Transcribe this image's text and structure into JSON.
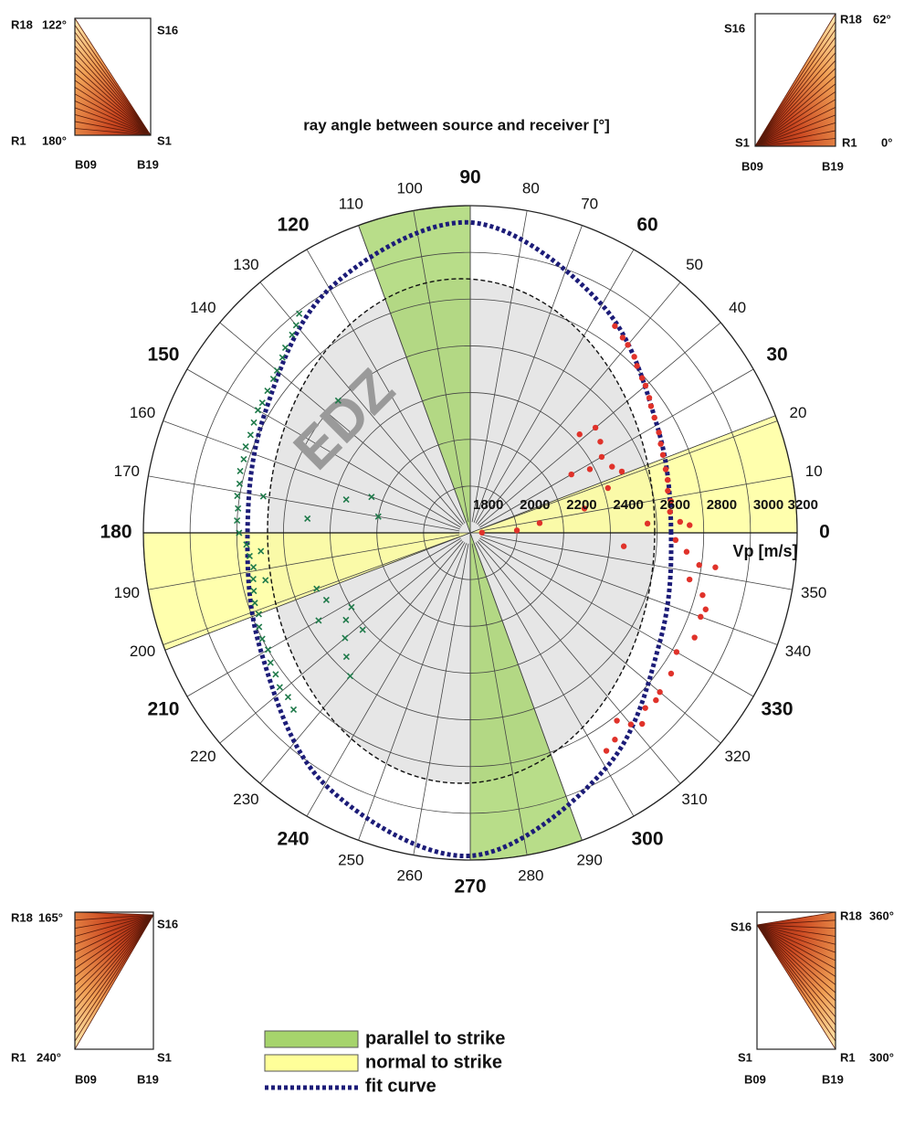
{
  "chart_data": {
    "type": "polar",
    "title": "ray angle between source and receiver [°]",
    "r_label": "Vp [m/s]",
    "annotation": "EDZ",
    "rlim": [
      1800,
      3200
    ],
    "rticks": [
      1800,
      2000,
      2200,
      2400,
      2600,
      2800,
      3000,
      3200
    ],
    "thetalim": [
      0,
      360
    ],
    "thetaticks": [
      0,
      10,
      20,
      30,
      40,
      50,
      60,
      70,
      80,
      90,
      100,
      110,
      120,
      130,
      140,
      150,
      160,
      170,
      180,
      190,
      200,
      210,
      220,
      230,
      240,
      250,
      260,
      270,
      280,
      290,
      300,
      310,
      320,
      330,
      340,
      350
    ],
    "sectors": [
      {
        "name": "parallel to strike",
        "color": "#a6d46c",
        "ranges": [
          [
            90,
            110
          ],
          [
            270,
            290
          ]
        ]
      },
      {
        "name": "normal to strike",
        "color": "#ffff99",
        "ranges": [
          [
            0,
            21
          ],
          [
            180,
            201
          ]
        ]
      }
    ],
    "series": [
      {
        "name": "fit curve",
        "color": "#1c1c78",
        "style": "dashed",
        "x": [
          0,
          30,
          60,
          90,
          120,
          150,
          180,
          210,
          240,
          270,
          300,
          330
        ],
        "values": [
          2660,
          2723,
          2927,
          3128,
          3006,
          2817,
          2754,
          2832,
          3044,
          3182,
          2962,
          2737
        ]
      },
      {
        "color": "#e0322a",
        "marker": "circle",
        "x": [
          55,
          52,
          50,
          47,
          45,
          42,
          40,
          37,
          35,
          32,
          28,
          25,
          22,
          18,
          15,
          12,
          9,
          6,
          3,
          2,
          358,
          355,
          352,
          348,
          345,
          340,
          335,
          330,
          325,
          320,
          315,
          310,
          305,
          302,
          318,
          312,
          308,
          40,
          35,
          42,
          30,
          28,
          25,
          22,
          30,
          18,
          12,
          8,
          3,
          1,
          355,
          3,
          352,
          342
        ],
        "values": [
          2880,
          2860,
          2850,
          2830,
          2810,
          2790,
          2780,
          2760,
          2745,
          2730,
          2715,
          2700,
          2690,
          2680,
          2675,
          2665,
          2670,
          2660,
          2700,
          2740,
          2680,
          2730,
          2790,
          2760,
          2830,
          2850,
          2860,
          2820,
          2850,
          2860,
          2860,
          2870,
          2880,
          2900,
          2870,
          2900,
          2820,
          2500,
          2480,
          2430,
          2450,
          2380,
          2470,
          2500,
          2300,
          2420,
          2300,
          2100,
          2000,
          1850,
          2460,
          2560,
          2860,
          2860
        ]
      },
      {
        "color": "#1f7a4a",
        "marker": "x",
        "x": [
          128,
          130,
          132,
          135,
          137,
          140,
          142,
          145,
          148,
          150,
          153,
          156,
          159,
          162,
          165,
          168,
          171,
          174,
          177,
          180,
          183,
          186,
          189,
          192,
          195,
          198,
          201,
          204,
          207,
          210,
          213,
          216,
          219,
          222,
          225,
          170,
          185,
          193,
          165,
          170,
          200,
          205,
          210,
          215,
          220,
          225,
          230,
          212,
          222,
          160,
          175,
          135
        ],
        "values": [
          2990,
          2960,
          2940,
          2920,
          2900,
          2880,
          2870,
          2860,
          2850,
          2850,
          2840,
          2830,
          2830,
          2820,
          2820,
          2810,
          2810,
          2800,
          2800,
          2790,
          2760,
          2750,
          2740,
          2750,
          2760,
          2770,
          2770,
          2790,
          2800,
          2800,
          2820,
          2830,
          2850,
          2850,
          2870,
          2700,
          2700,
          2700,
          2350,
          2200,
          2500,
          2480,
          2550,
          2450,
          2500,
          2550,
          2600,
          2400,
          2420,
          2250,
          2500,
          2600
        ]
      }
    ]
  },
  "insets": [
    {
      "labels": [
        "R18",
        "122°",
        "S16",
        "R1",
        "180°",
        "S1",
        "B09",
        "B19"
      ]
    },
    {
      "labels": [
        "S16",
        "R18",
        "62°",
        "S1",
        "R1",
        "0°",
        "B09",
        "B19"
      ]
    },
    {
      "labels": [
        "R18",
        "165°",
        "S16",
        "R1",
        "240°",
        "S1",
        "B09",
        "B19"
      ]
    },
    {
      "labels": [
        "S16",
        "R18",
        "360°",
        "S1",
        "R1",
        "300°",
        "B09",
        "B19"
      ]
    }
  ]
}
